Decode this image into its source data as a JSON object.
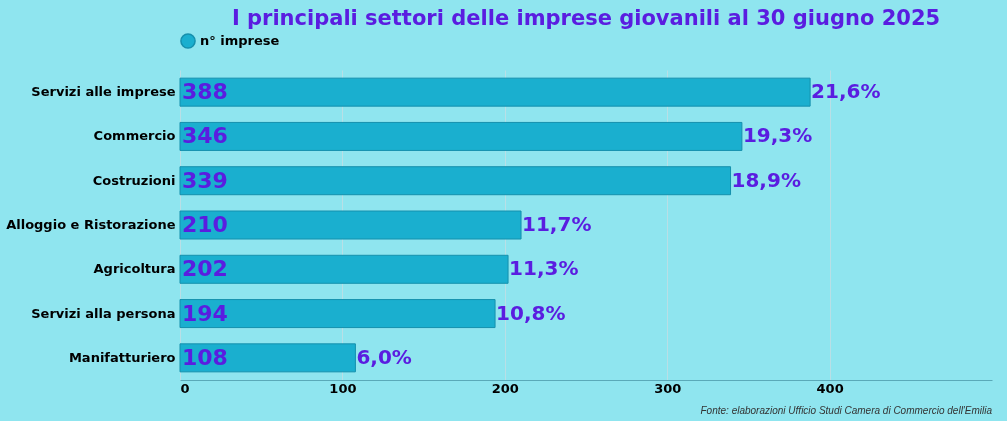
{
  "chart_data": {
    "type": "bar",
    "orientation": "horizontal",
    "title": "I principali settori  delle imprese giovanili  al 30 giugno  2025",
    "categories": [
      "Servizi alle imprese",
      "Commercio",
      "Costruzioni",
      "Alloggio e Ristorazione",
      "Agricoltura",
      "Servizi alla persona",
      "Manifatturiero"
    ],
    "series": [
      {
        "name": "n° imprese",
        "color": "#1aafcf",
        "values": [
          388,
          346,
          339,
          210,
          202,
          194,
          108
        ]
      }
    ],
    "xlim": [
      0,
      500
    ],
    "xticks": [
      0,
      100,
      200,
      300,
      400
    ],
    "grid": "x",
    "legend": "top",
    "data_labels": true,
    "annotations": [
      {
        "text": "21,6%",
        "x": 388,
        "y": "Servizi alle imprese"
      },
      {
        "text": "19,3%",
        "x": 346,
        "y": "Commercio"
      },
      {
        "text": "18,9%",
        "x": 339,
        "y": "Costruzioni"
      },
      {
        "text": "11,7%",
        "x": 210,
        "y": "Alloggio e Ristorazione"
      },
      {
        "text": "11,3%",
        "x": 202,
        "y": "Agricoltura"
      },
      {
        "text": "10,8%",
        "x": 194,
        "y": "Servizi alla persona"
      },
      {
        "text": "6,0%",
        "x": 108,
        "y": "Manifatturiero"
      },
      "Fonte: elaborazioni Ufficio Studi Camera di Commercio dell'Emilia"
    ]
  }
}
